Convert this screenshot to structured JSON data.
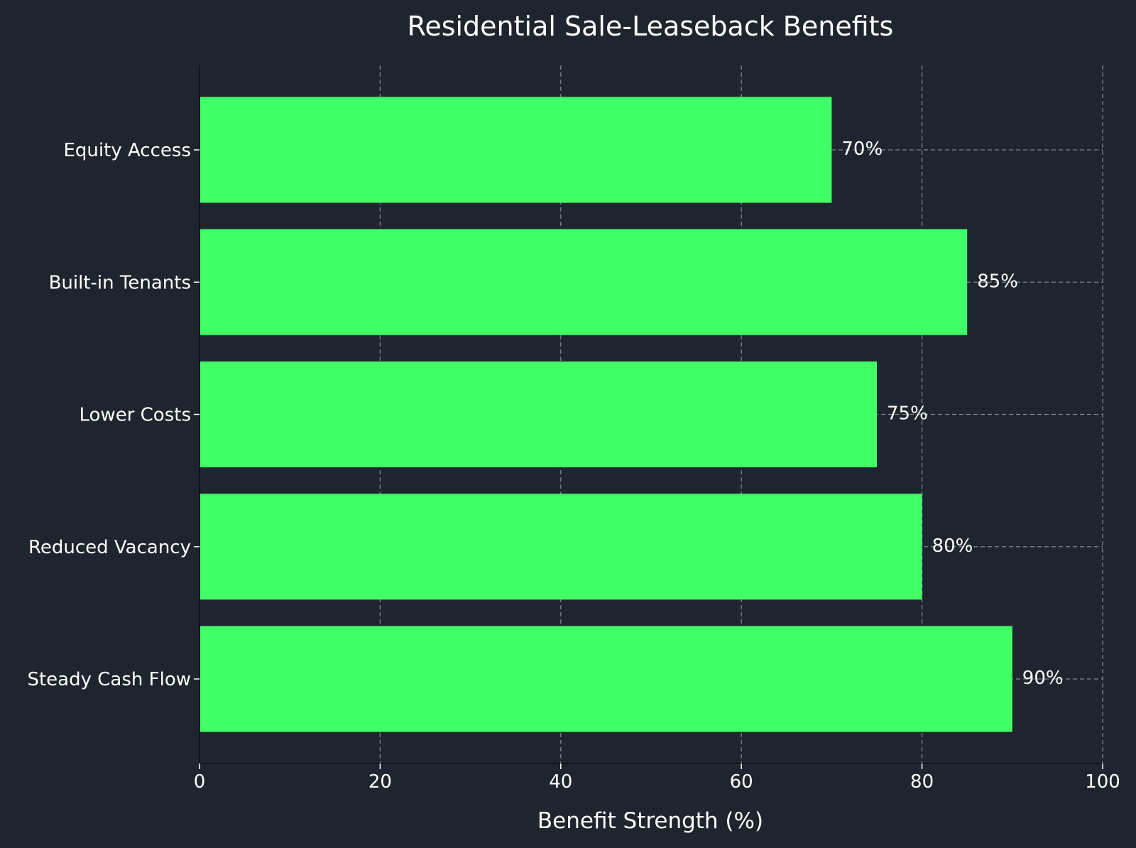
{
  "chart_data": {
    "type": "bar",
    "orientation": "horizontal",
    "title": "Residential Sale-Leaseback Benefits",
    "xlabel": "Benefit Strength (%)",
    "ylabel": "",
    "categories": [
      "Equity Access",
      "Built-in Tenants",
      "Lower Costs",
      "Reduced Vacancy",
      "Steady Cash Flow"
    ],
    "values": [
      70,
      85,
      75,
      80,
      90
    ],
    "data_labels": [
      "70%",
      "85%",
      "75%",
      "80%",
      "90%"
    ],
    "xlim": [
      0,
      100
    ],
    "xticks": [
      0,
      20,
      40,
      60,
      80,
      100
    ],
    "xtick_labels": [
      "0",
      "20",
      "40",
      "60",
      "80",
      "100"
    ],
    "grid": true,
    "grid_style": "dashed",
    "colors": {
      "background": "#1f252e",
      "bar": "#41ff66",
      "text": "#ffffff",
      "grid": "#7d8590"
    }
  }
}
